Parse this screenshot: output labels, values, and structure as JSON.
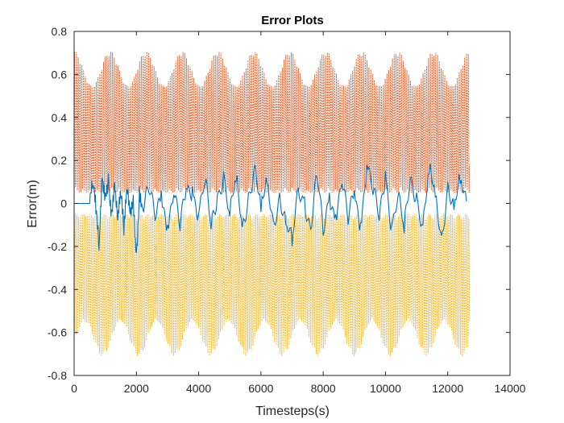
{
  "chart_data": {
    "type": "line",
    "title": "Error Plots",
    "xlabel": "Timesteps(s)",
    "ylabel": "Error(m)",
    "xlim": [
      0,
      14000
    ],
    "ylim": [
      -0.8,
      0.8
    ],
    "x_ticks": [
      0,
      2000,
      4000,
      6000,
      8000,
      10000,
      12000,
      14000
    ],
    "y_ticks": [
      -0.8,
      -0.6,
      -0.4,
      -0.2,
      0,
      0.2,
      0.4,
      0.6,
      0.8
    ],
    "x_tick_labels": [
      "0",
      "2000",
      "4000",
      "6000",
      "8000",
      "10000",
      "12000",
      "14000"
    ],
    "y_tick_labels": [
      "-0.8",
      "-0.6",
      "-0.4",
      "-0.2",
      "0",
      "0.2",
      "0.4",
      "0.6",
      "0.8"
    ],
    "grid": false,
    "series": [
      {
        "color": "#D95319",
        "description": "upper bound, oscillating between ~0.05 and ~0.71",
        "range": [
          0.05,
          0.71
        ],
        "x_end": 12700
      },
      {
        "color": "#EDB120",
        "description": "lower bound, oscillating between ~-0.05 and ~-0.71",
        "range": [
          -0.71,
          -0.05
        ],
        "x_end": 12700
      },
      {
        "color": "#0072BD",
        "description": "error signal around zero",
        "x": [
          0,
          200,
          500,
          600,
          700,
          800,
          900,
          1000,
          1100,
          1200,
          1300,
          1400,
          1500,
          1600,
          1700,
          1800,
          1900,
          2000,
          2100,
          2200,
          2400,
          2600,
          2800,
          3000,
          3200,
          3400,
          3600,
          3800,
          4000,
          4200,
          4400,
          4600,
          4800,
          5000,
          5200,
          5400,
          5600,
          5800,
          6000,
          6200,
          6400,
          6600,
          6800,
          7000,
          7200,
          7400,
          7600,
          7800,
          8000,
          8200,
          8400,
          8600,
          8800,
          9000,
          9200,
          9400,
          9600,
          9800,
          10000,
          10200,
          10400,
          10600,
          10800,
          11000,
          11200,
          11400,
          11600,
          11800,
          12000,
          12200,
          12400,
          12600
        ],
        "values": [
          0.0,
          0.0,
          0.0,
          0.08,
          -0.05,
          -0.22,
          0.12,
          0.05,
          0.14,
          -0.03,
          0.1,
          -0.08,
          0.03,
          -0.15,
          0.06,
          -0.05,
          0.04,
          -0.23,
          0.08,
          -0.02,
          0.05,
          -0.08,
          0.06,
          -0.1,
          0.04,
          -0.13,
          0.07,
          0.08,
          -0.05,
          0.09,
          -0.12,
          0.04,
          0.15,
          -0.06,
          0.1,
          -0.11,
          0.05,
          0.18,
          -0.04,
          0.09,
          -0.08,
          0.05,
          -0.1,
          -0.2,
          0.07,
          0.03,
          -0.12,
          0.12,
          -0.15,
          0.05,
          -0.05,
          0.09,
          -0.1,
          0.06,
          -0.09,
          0.18,
          0.04,
          -0.08,
          0.15,
          -0.1,
          0.03,
          -0.14,
          0.12,
          0.05,
          -0.1,
          0.14,
          0.03,
          -0.15,
          0.1,
          -0.03,
          0.09,
          0.01
        ]
      }
    ]
  }
}
